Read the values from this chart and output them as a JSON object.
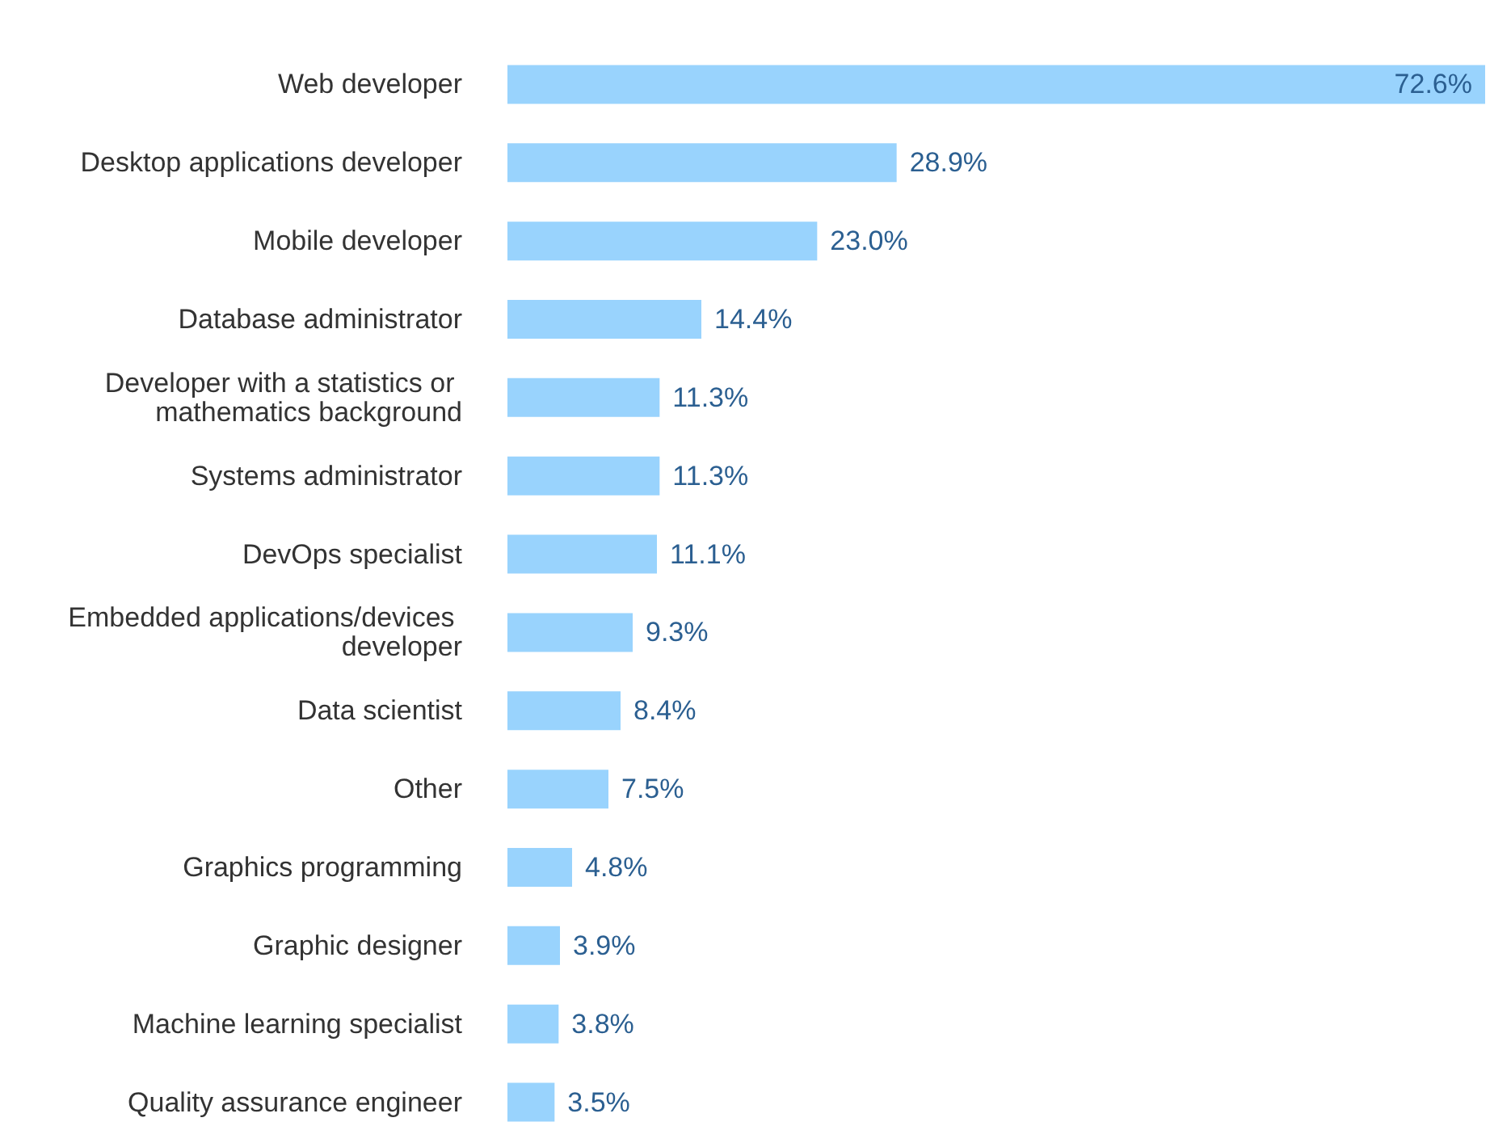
{
  "chart_data": {
    "type": "bar",
    "orientation": "horizontal",
    "categories": [
      "Web developer",
      "Desktop applications developer",
      "Mobile developer",
      "Database administrator",
      "Developer with a statistics or mathematics background",
      "Systems administrator",
      "DevOps specialist",
      "Embedded applications/devices developer",
      "Data scientist",
      "Other",
      "Graphics programming",
      "Graphic designer",
      "Machine learning specialist",
      "Quality assurance engineer"
    ],
    "values": [
      72.6,
      28.9,
      23.0,
      14.4,
      11.3,
      11.3,
      11.1,
      9.3,
      8.4,
      7.5,
      4.8,
      3.9,
      3.8,
      3.5
    ],
    "value_labels": [
      "72.6%",
      "28.9%",
      "23.0%",
      "14.4%",
      "11.3%",
      "11.3%",
      "11.1%",
      "9.3%",
      "8.4%",
      "7.5%",
      "4.8%",
      "3.9%",
      "3.8%",
      "3.5%"
    ],
    "color": "#99d3fd"
  }
}
